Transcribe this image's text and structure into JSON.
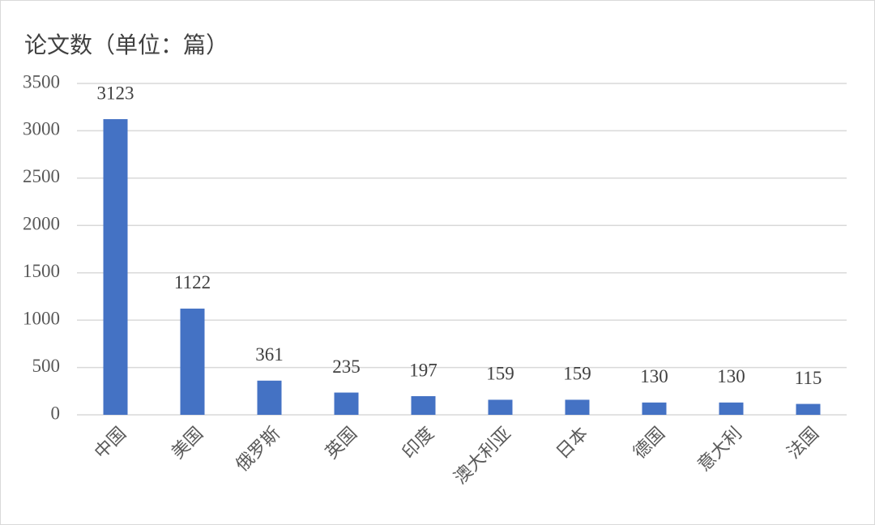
{
  "chart_data": {
    "type": "bar",
    "title": "论文数（单位：篇）",
    "categories": [
      "中国",
      "美国",
      "俄罗斯",
      "英国",
      "印度",
      "澳大利亚",
      "日本",
      "德国",
      "意大利",
      "法国"
    ],
    "values": [
      3123,
      1122,
      361,
      235,
      197,
      159,
      159,
      130,
      130,
      115
    ],
    "color": "#4472c4",
    "ylim": [
      0,
      3500
    ],
    "yticks": [
      0,
      500,
      1000,
      1500,
      2000,
      2500,
      3000,
      3500
    ],
    "grid": true,
    "data_labels": true
  }
}
